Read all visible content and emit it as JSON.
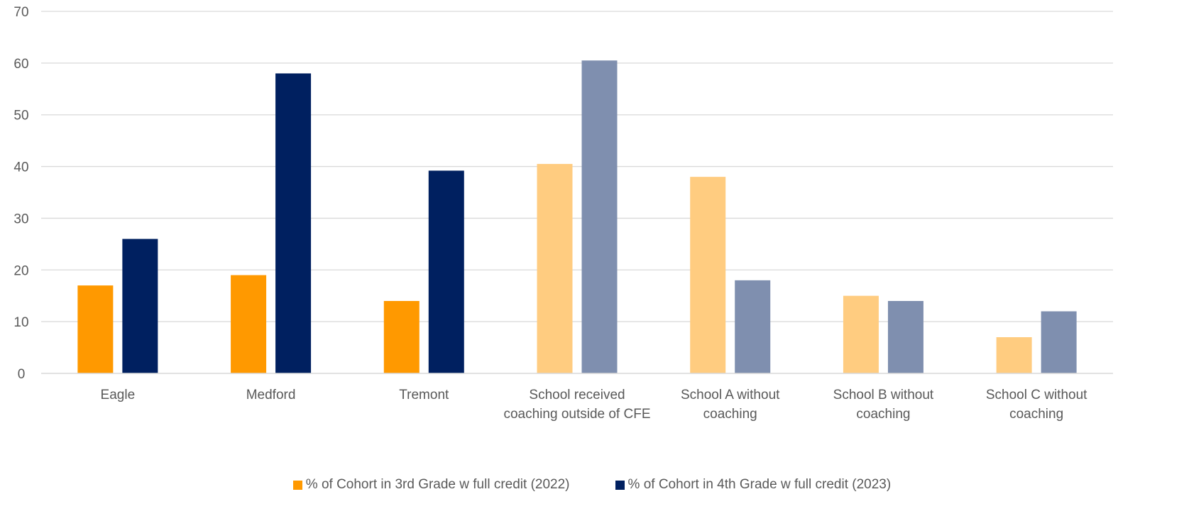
{
  "chart_data": {
    "type": "bar",
    "title": "",
    "xlabel": "",
    "ylabel": "",
    "ylim": [
      0,
      70
    ],
    "yticks": [
      0,
      10,
      20,
      30,
      40,
      50,
      60,
      70
    ],
    "grid": true,
    "legend_position": "bottom",
    "categories": [
      [
        "Eagle"
      ],
      [
        "Medford"
      ],
      [
        "Tremont"
      ],
      [
        "School received",
        "coaching outside of CFE"
      ],
      [
        "School A without",
        "coaching"
      ],
      [
        "School B without",
        "coaching"
      ],
      [
        "School C without",
        "coaching"
      ]
    ],
    "series": [
      {
        "name": "% of Cohort in 3rd Grade w full credit (2022)",
        "color": "#FF9900",
        "faded_color": "#FFCC80",
        "values": [
          17,
          19,
          14,
          40.5,
          38,
          15,
          7
        ]
      },
      {
        "name": "% of Cohort in 4th Grade w full credit (2023)",
        "color": "#002060",
        "faded_color": "#7F8FAF",
        "values": [
          26,
          58,
          39.2,
          60.5,
          18,
          14,
          12
        ]
      }
    ],
    "faded_categories": [
      3,
      4,
      5,
      6
    ]
  }
}
